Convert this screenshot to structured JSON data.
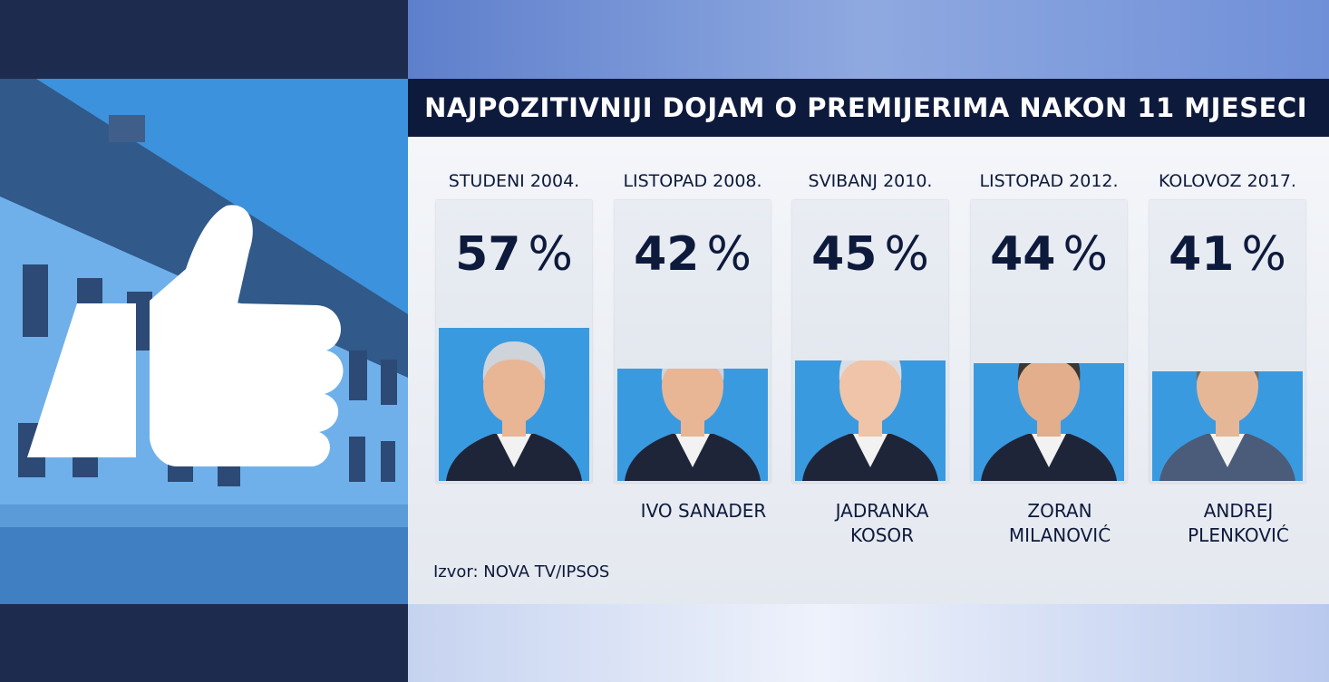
{
  "title": "NAJPOZITIVNIJI DOJAM O PREMIJERIMA NAKON 11 MJESECI",
  "source": "Izvor: NOVA TV/IPSOS",
  "percent_sign": "%",
  "colors": {
    "title_bar": "#0e1a3c",
    "bar": "#3a9ae0",
    "text": "#0e1a3c",
    "panel": "#eef1f6"
  },
  "icons": [
    "thumbs-up-icon"
  ],
  "chart_data": {
    "type": "bar",
    "title": "NAJPOZITIVNIJI DOJAM O PREMIJERIMA NAKON 11 MJESECI",
    "categories": [
      "STUDENI 2004.",
      "LISTOPAD 2008.",
      "SVIBANJ 2010.",
      "LISTOPAD 2012.",
      "KOLOVOZ 2017."
    ],
    "values": [
      57,
      42,
      45,
      44,
      41
    ],
    "unit": "%",
    "ylim": [
      0,
      100
    ],
    "grid": false,
    "names": [
      "IVO SANADER",
      "JADRANKA KOSOR",
      "ZORAN MILANOVIĆ",
      "ANDREJ PLENKOVIĆ"
    ]
  }
}
